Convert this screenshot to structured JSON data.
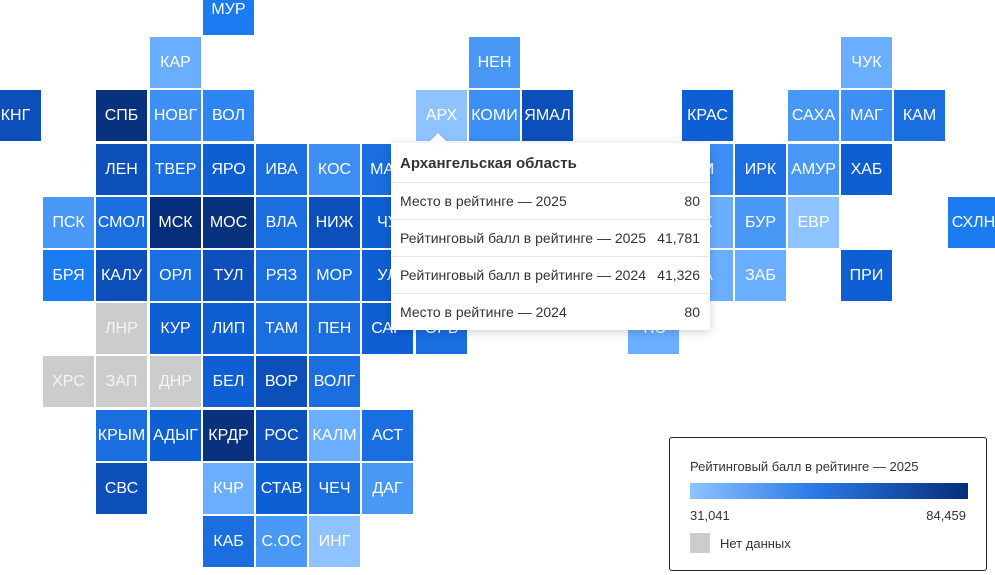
{
  "tiles": [
    {
      "label": "МУР",
      "col": 4,
      "row": 0,
      "color": "#1a7cf0"
    },
    {
      "label": "КАР",
      "col": 3,
      "row": 1,
      "color": "#6aaeff"
    },
    {
      "label": "НЕН",
      "col": 9,
      "row": 1,
      "color": "#4a98f5"
    },
    {
      "label": "ЧУК",
      "col": 16,
      "row": 1,
      "color": "#6aaeff"
    },
    {
      "label": "КНГ",
      "col": 0,
      "row": 2,
      "color": "#0c4fbb"
    },
    {
      "label": "СПБ",
      "col": 2,
      "row": 2,
      "color": "#08317e"
    },
    {
      "label": "НОВГ",
      "col": 3,
      "row": 2,
      "color": "#3d8ef5"
    },
    {
      "label": "ВОЛ",
      "col": 4,
      "row": 2,
      "color": "#2f86f2"
    },
    {
      "label": "АРХ",
      "col": 8,
      "row": 2,
      "color": "#8ec3ff"
    },
    {
      "label": "КОМИ",
      "col": 9,
      "row": 2,
      "color": "#3d8ef5"
    },
    {
      "label": "ЯМАЛ",
      "col": 10,
      "row": 2,
      "color": "#0c4fbb"
    },
    {
      "label": "КРАС",
      "col": 13,
      "row": 2,
      "color": "#0f5fd4"
    },
    {
      "label": "САХА",
      "col": 15,
      "row": 2,
      "color": "#4a98f5"
    },
    {
      "label": "МАГ",
      "col": 16,
      "row": 2,
      "color": "#3d8ef5"
    },
    {
      "label": "КАМ",
      "col": 17,
      "row": 2,
      "color": "#1a6ee0"
    },
    {
      "label": "ЛЕН",
      "col": 2,
      "row": 3,
      "color": "#0c4fbb"
    },
    {
      "label": "ТВЕР",
      "col": 3,
      "row": 3,
      "color": "#1a6ee0"
    },
    {
      "label": "ЯРО",
      "col": 4,
      "row": 3,
      "color": "#0f5fd4"
    },
    {
      "label": "ИВА",
      "col": 5,
      "row": 3,
      "color": "#1a6ee0"
    },
    {
      "label": "КОС",
      "col": 6,
      "row": 3,
      "color": "#3d8ef5"
    },
    {
      "label": "МАР",
      "col": 7,
      "row": 3,
      "color": "#1a6ee0"
    },
    {
      "label": "М",
      "col": 13,
      "row": 3,
      "color": "#3d8ef5"
    },
    {
      "label": "ИРК",
      "col": 14,
      "row": 3,
      "color": "#1a6ee0"
    },
    {
      "label": "АМУР",
      "col": 15,
      "row": 3,
      "color": "#4a98f5"
    },
    {
      "label": "ХАБ",
      "col": 16,
      "row": 3,
      "color": "#0f5fd4"
    },
    {
      "label": "ПСК",
      "col": 1,
      "row": 4,
      "color": "#4a98f5"
    },
    {
      "label": "СМОЛ",
      "col": 2,
      "row": 4,
      "color": "#1a6ee0"
    },
    {
      "label": "МСК",
      "col": 3,
      "row": 4,
      "color": "#062d7a"
    },
    {
      "label": "МОС",
      "col": 4,
      "row": 4,
      "color": "#08317e"
    },
    {
      "label": "ВЛА",
      "col": 5,
      "row": 4,
      "color": "#1a6ee0"
    },
    {
      "label": "НИЖ",
      "col": 6,
      "row": 4,
      "color": "#0c4fbb"
    },
    {
      "label": "ЧУ",
      "col": 7,
      "row": 4,
      "color": "#0f5fd4"
    },
    {
      "label": "К",
      "col": 13,
      "row": 4,
      "color": "#6aaeff"
    },
    {
      "label": "БУР",
      "col": 14,
      "row": 4,
      "color": "#4a98f5"
    },
    {
      "label": "ЕВР",
      "col": 15,
      "row": 4,
      "color": "#8ec3ff"
    },
    {
      "label": "СХЛН",
      "col": 18,
      "row": 4,
      "color": "#1a7cf0"
    },
    {
      "label": "БРЯ",
      "col": 1,
      "row": 5,
      "color": "#1a7cf0"
    },
    {
      "label": "КАЛУ",
      "col": 2,
      "row": 5,
      "color": "#0c4fbb"
    },
    {
      "label": "ОРЛ",
      "col": 3,
      "row": 5,
      "color": "#1a6ee0"
    },
    {
      "label": "ТУЛ",
      "col": 4,
      "row": 5,
      "color": "#0c4fbb"
    },
    {
      "label": "РЯЗ",
      "col": 5,
      "row": 5,
      "color": "#1a6ee0"
    },
    {
      "label": "МОР",
      "col": 6,
      "row": 5,
      "color": "#1a6ee0"
    },
    {
      "label": "УЛ",
      "col": 7,
      "row": 5,
      "color": "#0f5fd4"
    },
    {
      "label": "А",
      "col": 13,
      "row": 5,
      "color": "#6aaeff"
    },
    {
      "label": "ЗАБ",
      "col": 14,
      "row": 5,
      "color": "#6aaeff"
    },
    {
      "label": "ПРИ",
      "col": 16,
      "row": 5,
      "color": "#0f5fd4"
    },
    {
      "label": "ЛНР",
      "col": 2,
      "row": 6,
      "color": "#cccccc",
      "nodata": true
    },
    {
      "label": "КУР",
      "col": 3,
      "row": 6,
      "color": "#0f5fd4"
    },
    {
      "label": "ЛИП",
      "col": 4,
      "row": 6,
      "color": "#0f5fd4"
    },
    {
      "label": "ТАМ",
      "col": 5,
      "row": 6,
      "color": "#1a6ee0"
    },
    {
      "label": "ПЕН",
      "col": 6,
      "row": 6,
      "color": "#1a6ee0"
    },
    {
      "label": "САР",
      "col": 7,
      "row": 6,
      "color": "#0f5fd4"
    },
    {
      "label": "ОРБ",
      "col": 8,
      "row": 6,
      "color": "#1a6ee0"
    },
    {
      "label": "ТЮ",
      "col": 12,
      "row": 6,
      "color": "#6aaeff"
    },
    {
      "label": "ХРС",
      "col": 1,
      "row": 7,
      "color": "#cccccc",
      "nodata": true
    },
    {
      "label": "ЗАП",
      "col": 2,
      "row": 7,
      "color": "#cccccc",
      "nodata": true
    },
    {
      "label": "ДНР",
      "col": 3,
      "row": 7,
      "color": "#cccccc",
      "nodata": true
    },
    {
      "label": "БЕЛ",
      "col": 4,
      "row": 7,
      "color": "#0f5fd4"
    },
    {
      "label": "ВОР",
      "col": 5,
      "row": 7,
      "color": "#0c4fbb"
    },
    {
      "label": "ВОЛГ",
      "col": 6,
      "row": 7,
      "color": "#1a6ee0"
    },
    {
      "label": "КРЫМ",
      "col": 2,
      "row": 8,
      "color": "#1a6ee0"
    },
    {
      "label": "АДЫГ",
      "col": 3,
      "row": 8,
      "color": "#0f5fd4"
    },
    {
      "label": "КРДР",
      "col": 4,
      "row": 8,
      "color": "#08317e"
    },
    {
      "label": "РОС",
      "col": 5,
      "row": 8,
      "color": "#0c4fbb"
    },
    {
      "label": "КАЛМ",
      "col": 6,
      "row": 8,
      "color": "#6aaeff"
    },
    {
      "label": "АСТ",
      "col": 7,
      "row": 8,
      "color": "#1a6ee0"
    },
    {
      "label": "СВС",
      "col": 2,
      "row": 9,
      "color": "#0c4fbb"
    },
    {
      "label": "КЧР",
      "col": 4,
      "row": 9,
      "color": "#6aaeff"
    },
    {
      "label": "СТАВ",
      "col": 5,
      "row": 9,
      "color": "#0f5fd4"
    },
    {
      "label": "ЧЕЧ",
      "col": 6,
      "row": 9,
      "color": "#1a6ee0"
    },
    {
      "label": "ДАГ",
      "col": 7,
      "row": 9,
      "color": "#4a98f5"
    },
    {
      "label": "КАБ",
      "col": 4,
      "row": 10,
      "color": "#1a6ee0"
    },
    {
      "label": "С.ОС",
      "col": 5,
      "row": 10,
      "color": "#4a98f5"
    },
    {
      "label": "ИНГ",
      "col": 6,
      "row": 10,
      "color": "#8ec3ff"
    }
  ],
  "tooltip": {
    "title": "Архангельская область",
    "rows": [
      {
        "label": "Место в рейтинге — 2025",
        "value": "80"
      },
      {
        "label": "Рейтинговый балл в рейтинге — 2025",
        "value": "41,781"
      },
      {
        "label": "Рейтинговый балл в рейтинге — 2024",
        "value": "41,326"
      },
      {
        "label": "Место в рейтинге — 2024",
        "value": "80"
      }
    ]
  },
  "legend": {
    "title": "Рейтинговый балл в рейтинге — 2025",
    "min": "31,041",
    "max": "84,459",
    "no_data": "Нет данных",
    "gradient_start": "#8ec3ff",
    "gradient_end": "#062d7a",
    "no_data_color": "#cccccc"
  }
}
